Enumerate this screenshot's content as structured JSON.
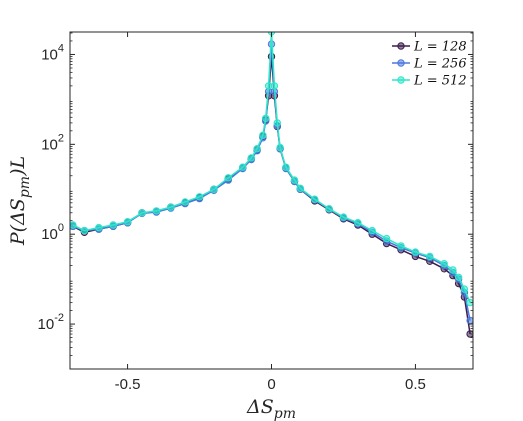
{
  "chart_data": {
    "type": "line",
    "title": "",
    "xlabel": "ΔS_pm",
    "ylabel": "P(ΔS_pm)L",
    "xlim": [
      -0.7,
      0.7
    ],
    "ylim_log10": [
      -3.0,
      4.5
    ],
    "y_scale": "log",
    "grid": false,
    "legend_position": "top-right",
    "x_ticks": [
      -0.5,
      0,
      0.5
    ],
    "x_tick_labels": [
      "-0.5",
      "0",
      "0.5"
    ],
    "y_ticks_log10": [
      -2,
      0,
      2,
      4
    ],
    "y_tick_labels": [
      {
        "base": "10",
        "exp": "-2"
      },
      {
        "base": "10",
        "exp": "0"
      },
      {
        "base": "10",
        "exp": "2"
      },
      {
        "base": "10",
        "exp": "4"
      }
    ],
    "series": [
      {
        "name": "L = 128",
        "color": "#3b1e4c",
        "x": [
          -0.69,
          -0.65,
          -0.6,
          -0.55,
          -0.5,
          -0.45,
          -0.4,
          -0.35,
          -0.3,
          -0.25,
          -0.2,
          -0.15,
          -0.1,
          -0.07,
          -0.05,
          -0.03,
          -0.02,
          -0.01,
          0.0,
          0.01,
          0.02,
          0.03,
          0.05,
          0.08,
          0.1,
          0.15,
          0.2,
          0.25,
          0.3,
          0.35,
          0.4,
          0.45,
          0.5,
          0.55,
          0.6,
          0.63,
          0.65,
          0.67,
          0.69
        ],
        "y": [
          1.5,
          1.1,
          1.3,
          1.5,
          1.8,
          3.0,
          3.2,
          4.0,
          5.0,
          6.5,
          10.0,
          17.0,
          30.0,
          48.0,
          75.0,
          150.0,
          350.0,
          1200.0,
          9000.0,
          1200.0,
          250.0,
          80.0,
          30.0,
          15.0,
          10.0,
          5.5,
          3.5,
          2.2,
          1.6,
          1.0,
          0.62,
          0.45,
          0.32,
          0.25,
          0.17,
          0.12,
          0.08,
          0.04,
          0.006
        ]
      },
      {
        "name": "L = 256",
        "color": "#4a78e0",
        "x": [
          -0.69,
          -0.65,
          -0.6,
          -0.55,
          -0.5,
          -0.45,
          -0.4,
          -0.35,
          -0.3,
          -0.25,
          -0.2,
          -0.15,
          -0.1,
          -0.07,
          -0.05,
          -0.03,
          -0.02,
          -0.01,
          0.0,
          0.01,
          0.02,
          0.03,
          0.05,
          0.08,
          0.1,
          0.15,
          0.2,
          0.25,
          0.3,
          0.35,
          0.4,
          0.45,
          0.5,
          0.55,
          0.6,
          0.63,
          0.65,
          0.67,
          0.69
        ],
        "y": [
          1.5,
          1.2,
          1.3,
          1.5,
          1.8,
          2.9,
          3.1,
          3.8,
          4.8,
          6.2,
          9.5,
          16.0,
          29.0,
          46.0,
          72.0,
          140.0,
          330.0,
          1500.0,
          17000.0,
          1500.0,
          260.0,
          80.0,
          29.0,
          15.0,
          10.0,
          5.8,
          3.6,
          2.3,
          1.7,
          1.1,
          0.7,
          0.5,
          0.38,
          0.3,
          0.2,
          0.14,
          0.1,
          0.05,
          0.012
        ]
      },
      {
        "name": "L = 512",
        "color": "#2ee6c8",
        "x": [
          -0.69,
          -0.65,
          -0.6,
          -0.55,
          -0.5,
          -0.45,
          -0.4,
          -0.35,
          -0.3,
          -0.25,
          -0.2,
          -0.15,
          -0.1,
          -0.07,
          -0.05,
          -0.03,
          -0.02,
          -0.01,
          0.0,
          0.01,
          0.02,
          0.03,
          0.05,
          0.08,
          0.1,
          0.15,
          0.2,
          0.25,
          0.3,
          0.35,
          0.4,
          0.45,
          0.5,
          0.55,
          0.6,
          0.63,
          0.65,
          0.67,
          0.69
        ],
        "y": [
          1.6,
          1.2,
          1.4,
          1.6,
          1.9,
          3.0,
          3.3,
          4.0,
          5.2,
          6.8,
          10.0,
          18.0,
          31.0,
          50.0,
          80.0,
          160.0,
          380.0,
          2000.0,
          32000.0,
          2000.0,
          300.0,
          85.0,
          31.0,
          16.0,
          10.5,
          6.0,
          3.7,
          2.4,
          1.8,
          1.2,
          0.8,
          0.55,
          0.4,
          0.32,
          0.22,
          0.16,
          0.11,
          0.06,
          0.03
        ]
      }
    ]
  }
}
